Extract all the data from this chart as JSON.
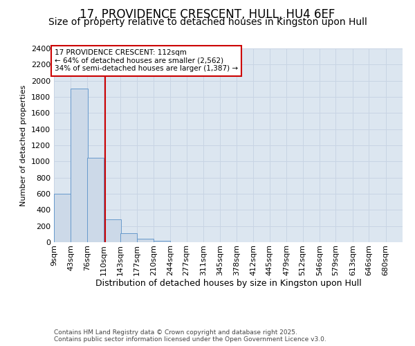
{
  "title": "17, PROVIDENCE CRESCENT, HULL, HU4 6EF",
  "subtitle": "Size of property relative to detached houses in Kingston upon Hull",
  "xlabel": "Distribution of detached houses by size in Kingston upon Hull",
  "ylabel": "Number of detached properties",
  "bar_color": "#ccd9e8",
  "bar_edge_color": "#6699cc",
  "grid_color": "#c8d4e4",
  "background_color": "#dce6f0",
  "annotation_box_text": "17 PROVIDENCE CRESCENT: 112sqm\n← 64% of detached houses are smaller (2,562)\n34% of semi-detached houses are larger (1,387) →",
  "annotation_box_color": "#cc0000",
  "red_line_x": 112,
  "categories": [
    "9sqm",
    "43sqm",
    "76sqm",
    "110sqm",
    "143sqm",
    "177sqm",
    "210sqm",
    "244sqm",
    "277sqm",
    "311sqm",
    "345sqm",
    "378sqm",
    "412sqm",
    "445sqm",
    "479sqm",
    "512sqm",
    "546sqm",
    "579sqm",
    "613sqm",
    "646sqm",
    "680sqm"
  ],
  "bin_left_edges": [
    9,
    43,
    76,
    110,
    143,
    177,
    210,
    244,
    277,
    311,
    345,
    378,
    412,
    445,
    479,
    512,
    546,
    579,
    613,
    646,
    680
  ],
  "bin_width": 34,
  "values": [
    600,
    1900,
    1050,
    280,
    115,
    45,
    20,
    0,
    0,
    0,
    0,
    0,
    0,
    0,
    0,
    0,
    0,
    0,
    0,
    0,
    0
  ],
  "ylim": [
    0,
    2400
  ],
  "yticks": [
    0,
    200,
    400,
    600,
    800,
    1000,
    1200,
    1400,
    1600,
    1800,
    2000,
    2200,
    2400
  ],
  "footer_text": "Contains HM Land Registry data © Crown copyright and database right 2025.\nContains public sector information licensed under the Open Government Licence v3.0.",
  "title_fontsize": 12,
  "subtitle_fontsize": 10,
  "xlabel_fontsize": 9,
  "ylabel_fontsize": 8,
  "tick_fontsize": 8,
  "footer_fontsize": 6.5
}
